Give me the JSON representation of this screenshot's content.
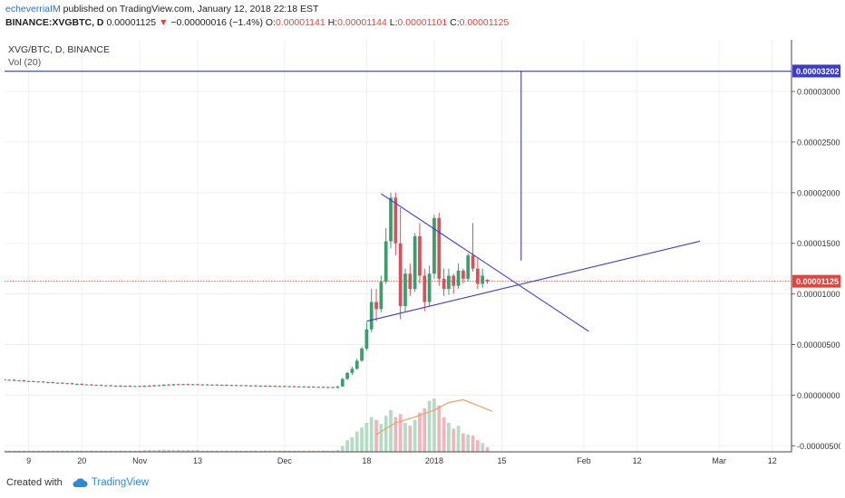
{
  "header": {
    "author": "echeverriaIM",
    "published": "published on TradingView.com, January 12, 2018 22:18 EST",
    "symbol": "BINANCE:XVGBTC, D",
    "last": "0.00001125",
    "change_arrow": "▼",
    "change": "−0.00000016 (−1.4%)",
    "o_label": "O:",
    "o": "0.00001141",
    "h_label": "H:",
    "h": "0.00001144",
    "l_label": "L:",
    "l": "0.00001101",
    "c_label": "C:",
    "c": "0.00001125"
  },
  "pane": {
    "title": "XVG/BTC, D, BINANCE",
    "vol_label": "Vol (20)"
  },
  "footer": {
    "created_with": "Created with",
    "brand": "TradingView"
  },
  "colors": {
    "up": "#3a9d6a",
    "down": "#d9505a",
    "vol_up": "#b4dcc5",
    "vol_down": "#f2b3ba",
    "vol_ma": "#f0a060",
    "drawing": "#3b3bcc",
    "last_price": "#e0463f",
    "grid": "#edf0f3"
  },
  "chart_data": {
    "type": "candlestick",
    "title": "XVG/BTC, D, BINANCE",
    "y_ticks": [
      "0.00003000",
      "0.00002500",
      "0.00002000",
      "0.00001500",
      "0.00001000",
      "0.00000500",
      "0.00000000",
      "-0.00000500"
    ],
    "y_tick_values": [
      3e-05,
      2.5e-05,
      2e-05,
      1.5e-05,
      1e-05,
      5e-06,
      0,
      -5e-06
    ],
    "ylim": [
      -5.6e-06,
      3.34e-05
    ],
    "x_ticks": [
      "9",
      "20",
      "Nov",
      "13",
      "Dec",
      "18",
      "2018",
      "15",
      "Feb",
      "12",
      "Mar",
      "12"
    ],
    "x_tick_days": [
      -84,
      -73,
      -61,
      -49,
      -31,
      -14,
      0,
      14,
      31,
      42,
      59,
      70
    ],
    "xlim": [
      -89,
      74
    ],
    "price_labels": [
      {
        "text": "0.00003202",
        "value": 3.202e-05,
        "role": "drawing-level"
      },
      {
        "text": "0.00001125",
        "value": 1.125e-05,
        "role": "last-price"
      }
    ],
    "drawings": [
      {
        "name": "triangle-upper-line",
        "from": [
          -11,
          1.99e-05
        ],
        "to": [
          32,
          6.3e-06
        ]
      },
      {
        "name": "triangle-lower-line",
        "from": [
          -14,
          7.3e-06
        ],
        "to": [
          55,
          1.52e-05
        ]
      },
      {
        "name": "target-vertical-line",
        "from": [
          18,
          3.2e-05
        ],
        "to": [
          18,
          1.33e-05
        ]
      },
      {
        "name": "target-horizontal-line",
        "from": [
          -89,
          3.2e-05
        ],
        "to": [
          74,
          3.2e-05
        ]
      }
    ],
    "volume_ma": [
      [
        -12,
        0.3
      ],
      [
        -8,
        0.5
      ],
      [
        -4,
        0.6
      ],
      [
        0,
        0.72
      ],
      [
        3,
        0.85
      ],
      [
        6,
        0.9
      ],
      [
        9,
        0.8
      ],
      [
        12,
        0.7
      ]
    ],
    "candles": [
      [
        -89,
        1.55e-06,
        1.6e-06,
        1.45e-06,
        1.5e-06,
        0.02
      ],
      [
        -88,
        1.5e-06,
        1.56e-06,
        1.42e-06,
        1.52e-06,
        0.02
      ],
      [
        -87,
        1.52e-06,
        1.55e-06,
        1.38e-06,
        1.42e-06,
        0.02
      ],
      [
        -86,
        1.42e-06,
        1.48e-06,
        1.35e-06,
        1.46e-06,
        0.02
      ],
      [
        -85,
        1.46e-06,
        1.5e-06,
        1.32e-06,
        1.36e-06,
        0.02
      ],
      [
        -84,
        1.36e-06,
        1.42e-06,
        1.3e-06,
        1.39e-06,
        0.02
      ],
      [
        -83,
        1.39e-06,
        1.43e-06,
        1.28e-06,
        1.31e-06,
        0.02
      ],
      [
        -82,
        1.31e-06,
        1.37e-06,
        1.24e-06,
        1.35e-06,
        0.02
      ],
      [
        -81,
        1.35e-06,
        1.38e-06,
        1.22e-06,
        1.26e-06,
        0.02
      ],
      [
        -80,
        1.26e-06,
        1.32e-06,
        1.18e-06,
        1.29e-06,
        0.02
      ],
      [
        -79,
        1.29e-06,
        1.33e-06,
        1.16e-06,
        1.2e-06,
        0.02
      ],
      [
        -78,
        1.2e-06,
        1.26e-06,
        1.12e-06,
        1.23e-06,
        0.02
      ],
      [
        -77,
        1.23e-06,
        1.27e-06,
        1.1e-06,
        1.14e-06,
        0.02
      ],
      [
        -76,
        1.14e-06,
        1.21e-06,
        1.08e-06,
        1.18e-06,
        0.02
      ],
      [
        -75,
        1.18e-06,
        1.22e-06,
        1.05e-06,
        1.08e-06,
        0.02
      ],
      [
        -74,
        1.08e-06,
        1.15e-06,
        1.02e-06,
        1.12e-06,
        0.02
      ],
      [
        -73,
        1.12e-06,
        1.16e-06,
        9.9e-07,
        1.02e-06,
        0.02
      ],
      [
        -72,
        1.02e-06,
        1.09e-06,
        9.7e-07,
        1.06e-06,
        0.02
      ],
      [
        -71,
        1.06e-06,
        1.1e-06,
        9.4e-07,
        9.7e-07,
        0.02
      ],
      [
        -70,
        9.7e-07,
        1.04e-06,
        9.2e-07,
        1.01e-06,
        0.02
      ],
      [
        -69,
        1.01e-06,
        1.05e-06,
        9e-07,
        9.3e-07,
        0.02
      ],
      [
        -68,
        9.3e-07,
        1e-06,
        8.8e-07,
        9.7e-07,
        0.02
      ],
      [
        -67,
        9.7e-07,
        1.01e-06,
        8.6e-07,
        8.9e-07,
        0.02
      ],
      [
        -66,
        8.9e-07,
        9.6e-07,
        8.4e-07,
        9.4e-07,
        0.02
      ],
      [
        -65,
        9.4e-07,
        9.8e-07,
        8.3e-07,
        8.6e-07,
        0.02
      ],
      [
        -64,
        8.6e-07,
        9.4e-07,
        8.1e-07,
        9.2e-07,
        0.02
      ],
      [
        -63,
        9.2e-07,
        9.7e-07,
        8.2e-07,
        8.5e-07,
        0.02
      ],
      [
        -62,
        8.5e-07,
        9.3e-07,
        8e-07,
        9e-07,
        0.02
      ],
      [
        -61,
        9e-07,
        9.5e-07,
        8.1e-07,
        8.4e-07,
        0.02
      ],
      [
        -60,
        8.4e-07,
        9.5e-07,
        8e-07,
        9.3e-07,
        0.03
      ],
      [
        -59,
        9.3e-07,
        1e-06,
        8.4e-07,
        8.8e-07,
        0.03
      ],
      [
        -58,
        8.8e-07,
        1.01e-06,
        8.4e-07,
        9.8e-07,
        0.03
      ],
      [
        -57,
        9.8e-07,
        1.04e-06,
        8.8e-07,
        9.2e-07,
        0.03
      ],
      [
        -56,
        9.2e-07,
        1.06e-06,
        8.8e-07,
        1.04e-06,
        0.04
      ],
      [
        -55,
        1.04e-06,
        1.12e-06,
        9.4e-07,
        9.7e-07,
        0.03
      ],
      [
        -54,
        9.7e-07,
        1.1e-06,
        9.3e-07,
        1.08e-06,
        0.03
      ],
      [
        -53,
        1.08e-06,
        1.13e-06,
        9.8e-07,
        1.01e-06,
        0.03
      ],
      [
        -52,
        1.01e-06,
        1.12e-06,
        9.7e-07,
        1.09e-06,
        0.03
      ],
      [
        -51,
        1.09e-06,
        1.13e-06,
        9.9e-07,
        1.02e-06,
        0.03
      ],
      [
        -50,
        1.02e-06,
        1.11e-06,
        9.7e-07,
        1.08e-06,
        0.03
      ],
      [
        -49,
        1.08e-06,
        1.12e-06,
        9.7e-07,
        1e-06,
        0.03
      ],
      [
        -48,
        1e-06,
        1.09e-06,
        9.5e-07,
        1.06e-06,
        0.02
      ],
      [
        -47,
        1.06e-06,
        1.1e-06,
        9.5e-07,
        9.8e-07,
        0.02
      ],
      [
        -46,
        9.8e-07,
        1.07e-06,
        9.3e-07,
        1.04e-06,
        0.02
      ],
      [
        -45,
        1.04e-06,
        1.08e-06,
        9.3e-07,
        9.6e-07,
        0.02
      ],
      [
        -44,
        9.6e-07,
        1.05e-06,
        9.1e-07,
        1.02e-06,
        0.02
      ],
      [
        -43,
        1.02e-06,
        1.06e-06,
        9.1e-07,
        9.4e-07,
        0.02
      ],
      [
        -42,
        9.4e-07,
        1.03e-06,
        8.9e-07,
        1e-06,
        0.02
      ],
      [
        -41,
        1e-06,
        1.04e-06,
        8.9e-07,
        9.2e-07,
        0.02
      ],
      [
        -40,
        9.2e-07,
        1.01e-06,
        8.7e-07,
        9.8e-07,
        0.02
      ],
      [
        -39,
        9.8e-07,
        1.02e-06,
        8.7e-07,
        9e-07,
        0.02
      ],
      [
        -38,
        9e-07,
        9.9e-07,
        8.5e-07,
        9.6e-07,
        0.02
      ],
      [
        -37,
        9.6e-07,
        1e-06,
        8.5e-07,
        8.8e-07,
        0.02
      ],
      [
        -36,
        8.8e-07,
        9.7e-07,
        8.3e-07,
        9.4e-07,
        0.02
      ],
      [
        -35,
        9.4e-07,
        9.8e-07,
        8.3e-07,
        8.6e-07,
        0.02
      ],
      [
        -34,
        8.6e-07,
        9.5e-07,
        8.1e-07,
        9.2e-07,
        0.02
      ],
      [
        -33,
        9.2e-07,
        9.6e-07,
        8.1e-07,
        8.4e-07,
        0.02
      ],
      [
        -32,
        8.4e-07,
        9.3e-07,
        7.9e-07,
        9e-07,
        0.02
      ],
      [
        -31,
        9e-07,
        9.4e-07,
        7.9e-07,
        8.2e-07,
        0.02
      ],
      [
        -30,
        8.2e-07,
        9.1e-07,
        7.7e-07,
        8.8e-07,
        0.02
      ],
      [
        -29,
        8.8e-07,
        9.2e-07,
        7.7e-07,
        8e-07,
        0.02
      ],
      [
        -28,
        8e-07,
        8.9e-07,
        7.5e-07,
        8.6e-07,
        0.02
      ],
      [
        -27,
        8.6e-07,
        9e-07,
        7.5e-07,
        7.8e-07,
        0.02
      ],
      [
        -26,
        7.8e-07,
        8.7e-07,
        7.3e-07,
        8.4e-07,
        0.02
      ],
      [
        -25,
        8.4e-07,
        8.8e-07,
        7.3e-07,
        7.6e-07,
        0.02
      ],
      [
        -24,
        7.6e-07,
        8.5e-07,
        7.1e-07,
        8.2e-07,
        0.02
      ],
      [
        -23,
        8.2e-07,
        8.6e-07,
        7.1e-07,
        7.4e-07,
        0.02
      ],
      [
        -22,
        7.4e-07,
        8.3e-07,
        6.9e-07,
        8e-07,
        0.02
      ],
      [
        -21,
        8e-07,
        8.4e-07,
        6.9e-07,
        7.2e-07,
        0.02
      ],
      [
        -20,
        7.2e-07,
        9e-07,
        6.8e-07,
        8.6e-07,
        0.03
      ],
      [
        -19,
        8.6e-07,
        1.7e-06,
        8.4e-07,
        1.6e-06,
        0.1
      ],
      [
        -18,
        1.6e-06,
        2.3e-06,
        1.5e-06,
        2.2e-06,
        0.2
      ],
      [
        -17,
        2.2e-06,
        2.8e-06,
        2e-06,
        2.6e-06,
        0.25
      ],
      [
        -16,
        2.6e-06,
        3.6e-06,
        2.5e-06,
        3.4e-06,
        0.35
      ],
      [
        -15,
        3.4e-06,
        4.8e-06,
        3.3e-06,
        4.6e-06,
        0.42
      ],
      [
        -14,
        4.6e-06,
        7.2e-06,
        4.4e-06,
        6.5e-06,
        0.5
      ],
      [
        -13,
        6.5e-06,
        1.05e-05,
        6.2e-06,
        9.2e-06,
        0.6
      ],
      [
        -12,
        9.2e-06,
        1.05e-05,
        7.3e-06,
        8.5e-06,
        0.55
      ],
      [
        -11,
        8.5e-06,
        1.18e-05,
        8.2e-06,
        1.12e-05,
        0.48
      ],
      [
        -10,
        1.12e-05,
        1.65e-05,
        1.1e-05,
        1.52e-05,
        0.62
      ],
      [
        -9,
        1.52e-05,
        2e-05,
        1.45e-05,
        1.95e-05,
        0.72
      ],
      [
        -8,
        1.95e-05,
        2e-05,
        1.38e-05,
        1.5e-05,
        0.6
      ],
      [
        -7,
        1.5e-05,
        1.85e-05,
        7.5e-06,
        8.8e-06,
        0.65
      ],
      [
        -6,
        8.8e-06,
        1.25e-05,
        8.2e-06,
        1.2e-05,
        0.5
      ],
      [
        -5,
        1.2e-05,
        1.3e-05,
        9.8e-06,
        1.05e-05,
        0.45
      ],
      [
        -4,
        1.05e-05,
        1.6e-05,
        1.02e-05,
        1.57e-05,
        0.55
      ],
      [
        -3,
        1.57e-05,
        1.7e-05,
        1.1e-05,
        1.18e-05,
        0.68
      ],
      [
        -2,
        1.18e-05,
        1.25e-05,
        8.3e-06,
        9.2e-06,
        0.75
      ],
      [
        -1,
        9.2e-06,
        1.28e-05,
        8.8e-06,
        1.2e-05,
        0.88
      ],
      [
        0,
        1.2e-05,
        1.78e-05,
        1.15e-05,
        1.75e-05,
        0.92
      ],
      [
        1,
        1.75e-05,
        1.8e-05,
        1.08e-05,
        1.15e-05,
        0.8
      ],
      [
        2,
        1.15e-05,
        1.25e-05,
        9.8e-06,
        1.05e-05,
        0.6
      ],
      [
        3,
        1.05e-05,
        1.25e-05,
        9.9e-06,
        1.18e-05,
        0.5
      ],
      [
        4,
        1.18e-05,
        1.2e-05,
        1e-05,
        1.08e-05,
        0.4
      ],
      [
        5,
        1.08e-05,
        1.3e-05,
        1.05e-05,
        1.23e-05,
        0.45
      ],
      [
        6,
        1.23e-05,
        1.25e-05,
        1.1e-05,
        1.15e-05,
        0.32
      ],
      [
        7,
        1.15e-05,
        1.4e-05,
        1.12e-05,
        1.38e-05,
        0.3
      ],
      [
        8,
        1.38e-05,
        1.7e-05,
        1.22e-05,
        1.25e-05,
        0.28
      ],
      [
        9,
        1.25e-05,
        1.35e-05,
        1.05e-05,
        1.1e-05,
        0.2
      ],
      [
        10,
        1.1e-05,
        1.25e-05,
        1.06e-05,
        1.18e-05,
        0.15
      ],
      [
        11,
        1.141e-05,
        1.144e-05,
        1.101e-05,
        1.125e-05,
        0.08
      ]
    ]
  }
}
